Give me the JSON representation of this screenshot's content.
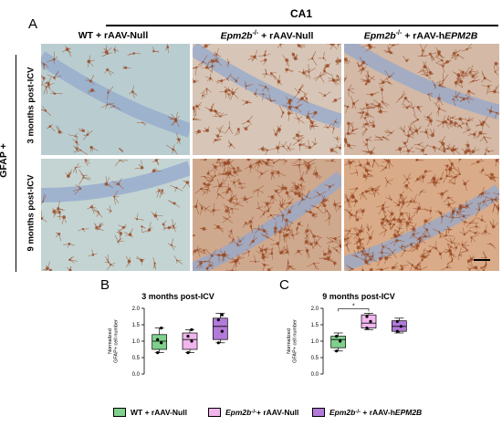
{
  "figure": {
    "panel_labels": {
      "a": "A",
      "b": "B",
      "c": "C"
    },
    "region_title": "CA1",
    "side_label": "GFAP +",
    "columns": [
      {
        "prefix": "",
        "italic": "",
        "suffix": "WT + rAAV-Null"
      },
      {
        "prefix": "",
        "italic": "Epm2b",
        "sup": "-/-",
        "suffix": "+ rAAV-Null"
      },
      {
        "prefix": "",
        "italic": "Epm2b",
        "sup": "-/-",
        "suffix": "+ rAAV-h",
        "italic2": "EPM2B"
      }
    ],
    "rows": [
      "3 months post-ICV",
      "9 months post-ICV"
    ],
    "tissue_colors": {
      "wt3": "#b9cdd0",
      "null3": "#d7c6b7",
      "h3": "#d3b9a6",
      "wt9": "#c3d4d3",
      "null9": "#cfa98e",
      "h9": "#d9ab88",
      "layer": "#93a8cc",
      "stain": "#9a4a24"
    }
  },
  "legend": [
    {
      "label_plain": "WT + rAAV-Null",
      "color": "#7fd08c"
    },
    {
      "label_italic": "Epm2b",
      "sup": "-/-",
      "label_plain": "+ rAAV-Null",
      "color": "#f1b6ee"
    },
    {
      "label_italic": "Epm2b",
      "sup": "-/-",
      "label_plain": "+ rAAV-h",
      "label_italic2": "EPM2B",
      "color": "#b27ad9"
    }
  ],
  "chart_data": [
    {
      "type": "boxplot",
      "title": "3 months post-ICV",
      "ylabel": "Normalized GFAP+ cell number",
      "ylim": [
        0.0,
        2.0
      ],
      "yticks": [
        "0.0",
        "0.5",
        "1.0",
        "1.5",
        "2.0"
      ],
      "groups": [
        {
          "color": "#7fd08c",
          "min": 0.65,
          "q1": 0.75,
          "median": 1.0,
          "q3": 1.2,
          "max": 1.4,
          "points": [
            0.65,
            0.95,
            1.05,
            1.4
          ]
        },
        {
          "color": "#f1b6ee",
          "min": 0.65,
          "q1": 0.75,
          "median": 1.05,
          "q3": 1.25,
          "max": 1.35,
          "points": [
            0.65,
            1.0,
            1.15,
            1.35
          ]
        },
        {
          "color": "#b27ad9",
          "min": 0.95,
          "q1": 1.05,
          "median": 1.45,
          "q3": 1.7,
          "max": 1.85,
          "points": [
            0.95,
            1.3,
            1.65,
            1.8
          ]
        }
      ],
      "significance": null
    },
    {
      "type": "boxplot",
      "title": "9 months post-ICV",
      "ylabel": "Normalized GFAP+ cell number",
      "ylim": [
        0.0,
        2.0
      ],
      "yticks": [
        "0.0",
        "0.5",
        "1.0",
        "1.5",
        "2.0"
      ],
      "groups": [
        {
          "color": "#7fd08c",
          "min": 0.7,
          "q1": 0.8,
          "median": 1.05,
          "q3": 1.15,
          "max": 1.25,
          "points": [
            0.7,
            1.0,
            1.15
          ]
        },
        {
          "color": "#f1b6ee",
          "min": 1.35,
          "q1": 1.4,
          "median": 1.55,
          "q3": 1.8,
          "max": 1.85,
          "points": [
            1.4,
            1.6,
            1.75
          ]
        },
        {
          "color": "#b27ad9",
          "min": 1.25,
          "q1": 1.3,
          "median": 1.45,
          "q3": 1.62,
          "max": 1.7,
          "points": [
            1.3,
            1.45,
            1.6
          ]
        }
      ],
      "significance": {
        "from": 0,
        "to": 1,
        "label": "*"
      }
    }
  ]
}
